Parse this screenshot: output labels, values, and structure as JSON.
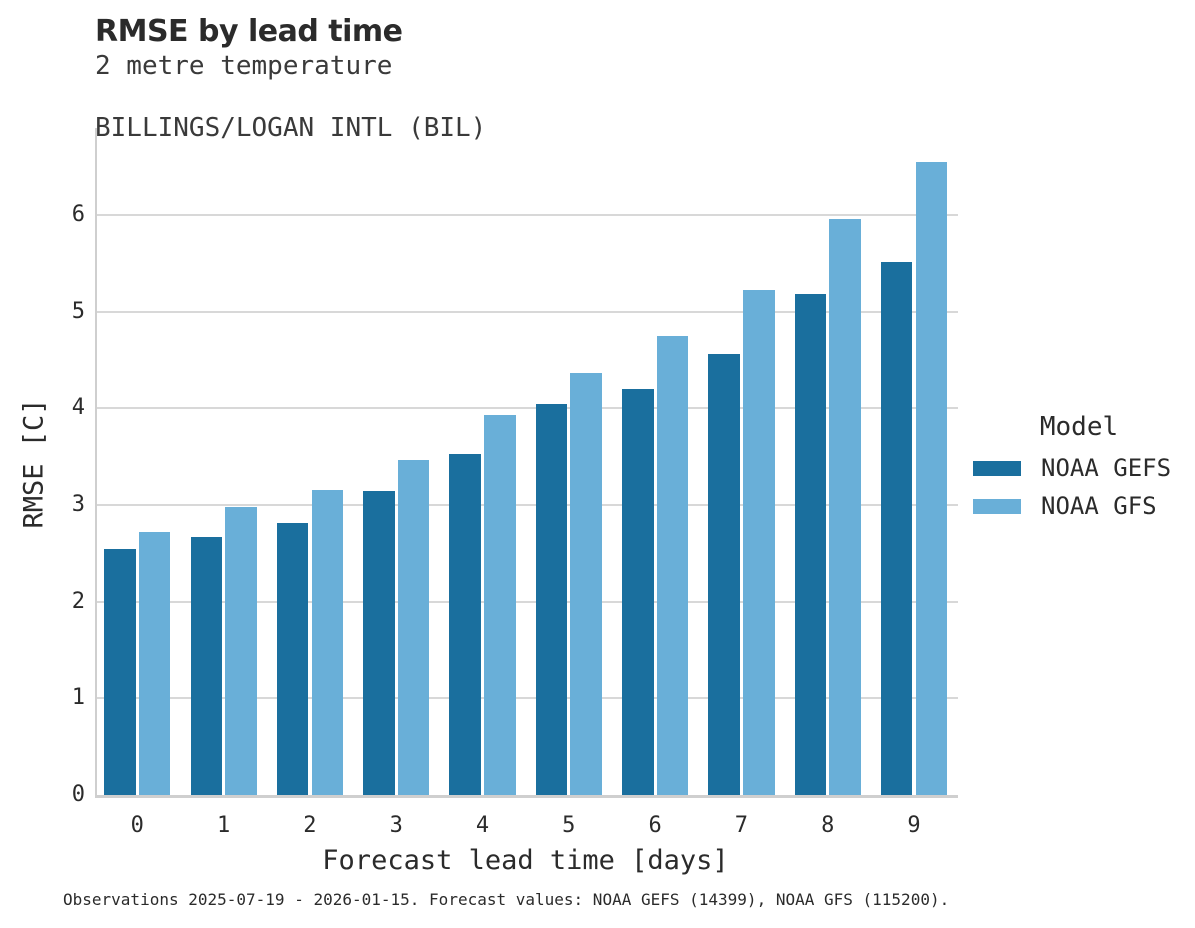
{
  "header": {
    "title": "RMSE by lead time",
    "subtitle1": "2 metre temperature",
    "subtitle2": "BILLINGS/LOGAN INTL (BIL)"
  },
  "axes": {
    "xlabel": "Forecast lead time [days]",
    "ylabel": "RMSE [C]"
  },
  "legend": {
    "title": "Model",
    "entries": [
      {
        "label": "NOAA GEFS",
        "color": "#1a6f9e"
      },
      {
        "label": "NOAA GFS",
        "color": "#69afd8"
      }
    ]
  },
  "footer": {
    "caption": "Observations 2025-07-19 - 2026-01-15. Forecast values: NOAA GEFS (14399), NOAA GFS (115200)."
  },
  "colors": {
    "gefs": "#1a6f9e",
    "gfs": "#69afd8",
    "gridline": "#d8d8d8",
    "spine": "#cfcfcf",
    "text": "#2b2b2b"
  },
  "chart_data": {
    "type": "bar",
    "title": "RMSE by lead time",
    "subtitle": [
      "2 metre temperature",
      "BILLINGS/LOGAN INTL (BIL)"
    ],
    "xlabel": "Forecast lead time [days]",
    "ylabel": "RMSE [C]",
    "categories": [
      "0",
      "1",
      "2",
      "3",
      "4",
      "5",
      "6",
      "7",
      "8",
      "9"
    ],
    "series": [
      {
        "name": "NOAA GEFS",
        "color": "#1a6f9e",
        "values": [
          2.55,
          2.67,
          2.81,
          3.14,
          3.53,
          4.05,
          4.2,
          4.56,
          5.18,
          5.51
        ]
      },
      {
        "name": "NOAA GFS",
        "color": "#69afd8",
        "values": [
          2.72,
          2.98,
          3.16,
          3.47,
          3.93,
          4.37,
          4.75,
          5.22,
          5.96,
          6.55
        ]
      }
    ],
    "ylim": [
      0,
      6.9
    ],
    "yticks": [
      0,
      1,
      2,
      3,
      4,
      5,
      6
    ],
    "grid": true,
    "legend_position": "right",
    "legend_title": "Model",
    "caption": "Observations 2025-07-19 - 2026-01-15. Forecast values: NOAA GEFS (14399), NOAA GFS (115200)."
  }
}
